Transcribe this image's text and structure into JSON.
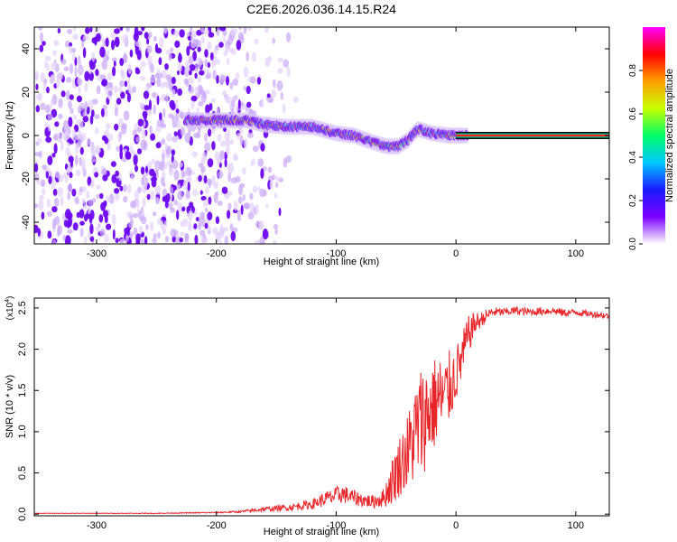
{
  "page": {
    "title": "C2E6.2026.036.14.15.R24"
  },
  "chart_data": [
    {
      "type": "heatmap",
      "xlabel": "Height of straight line (km)",
      "ylabel": "Frequency (Hz)",
      "xlim": [
        -352,
        128
      ],
      "ylim": [
        -50,
        50
      ],
      "xticks": [
        -300,
        -200,
        -100,
        0,
        100
      ],
      "yticks": [
        -40,
        -20,
        0,
        20,
        40
      ],
      "colorbar": {
        "label": "Normalized spectral amplitude",
        "range": [
          0,
          1
        ],
        "ticks": [
          "0.0",
          "0.2",
          "0.4",
          "0.6",
          "0.8"
        ],
        "colormap": [
          "#ffffff",
          "#7b00ff",
          "#1a1aff",
          "#00c8ff",
          "#00ff66",
          "#c8ff00",
          "#ffa000",
          "#ff0000",
          "#ff00ff"
        ]
      },
      "features": {
        "noise_region_x": [
          -352,
          -185
        ],
        "signal_band": [
          {
            "x": -225,
            "y": 7
          },
          {
            "x": -200,
            "y": 7
          },
          {
            "x": -175,
            "y": 7
          },
          {
            "x": -160,
            "y": 5
          },
          {
            "x": -140,
            "y": 4
          },
          {
            "x": -120,
            "y": 4
          },
          {
            "x": -100,
            "y": 1
          },
          {
            "x": -85,
            "y": 0
          },
          {
            "x": -70,
            "y": -3
          },
          {
            "x": -58,
            "y": -5
          },
          {
            "x": -48,
            "y": -5
          },
          {
            "x": -40,
            "y": -2
          },
          {
            "x": -32,
            "y": 3
          },
          {
            "x": -20,
            "y": 1
          },
          {
            "x": -5,
            "y": 0
          },
          {
            "x": 20,
            "y": 0
          },
          {
            "x": 60,
            "y": 0
          },
          {
            "x": 128,
            "y": 0
          }
        ]
      }
    },
    {
      "type": "line",
      "xlabel": "Height of straight line (km)",
      "ylabel": "SNR (10 * v/v)",
      "y_multiplier": "(x10",
      "y_multiplier_exp": "4",
      "y_multiplier_close": ")",
      "xlim": [
        -352,
        128
      ],
      "ylim": [
        -0.02,
        2.62
      ],
      "xticks": [
        -300,
        -200,
        -100,
        0,
        100
      ],
      "yticks": [
        "0.0",
        "0.5",
        "1.0",
        "1.5",
        "2.0",
        "2.5"
      ],
      "color": "#e8262a",
      "series": [
        {
          "x": [
            -352,
            -300,
            -250,
            -200,
            -180,
            -160,
            -140,
            -120,
            -110,
            -100,
            -95,
            -90,
            -80,
            -70,
            -60,
            -55,
            -50,
            -45,
            -40,
            -35,
            -30,
            -25,
            -20,
            -15,
            -10,
            -5,
            0,
            5,
            10,
            15,
            20,
            25,
            30,
            40,
            50,
            60,
            70,
            80,
            90,
            100,
            110,
            120,
            128
          ],
          "y": [
            0.01,
            0.01,
            0.01,
            0.02,
            0.03,
            0.06,
            0.08,
            0.12,
            0.18,
            0.22,
            0.25,
            0.22,
            0.18,
            0.15,
            0.2,
            0.35,
            0.5,
            0.65,
            0.75,
            0.95,
            1.1,
            1.2,
            1.3,
            1.4,
            1.4,
            1.55,
            1.7,
            1.9,
            2.15,
            2.3,
            2.35,
            2.4,
            2.45,
            2.45,
            2.47,
            2.45,
            2.46,
            2.47,
            2.44,
            2.45,
            2.43,
            2.42,
            2.4
          ],
          "noise": [
            0.003,
            0.003,
            0.004,
            0.008,
            0.012,
            0.03,
            0.04,
            0.06,
            0.09,
            0.11,
            0.12,
            0.1,
            0.09,
            0.08,
            0.12,
            0.25,
            0.35,
            0.4,
            0.5,
            0.6,
            0.7,
            0.65,
            0.6,
            0.55,
            0.5,
            0.45,
            0.35,
            0.3,
            0.25,
            0.15,
            0.1,
            0.08,
            0.06,
            0.05,
            0.05,
            0.05,
            0.05,
            0.05,
            0.05,
            0.04,
            0.04,
            0.04,
            0.04
          ]
        }
      ]
    }
  ]
}
